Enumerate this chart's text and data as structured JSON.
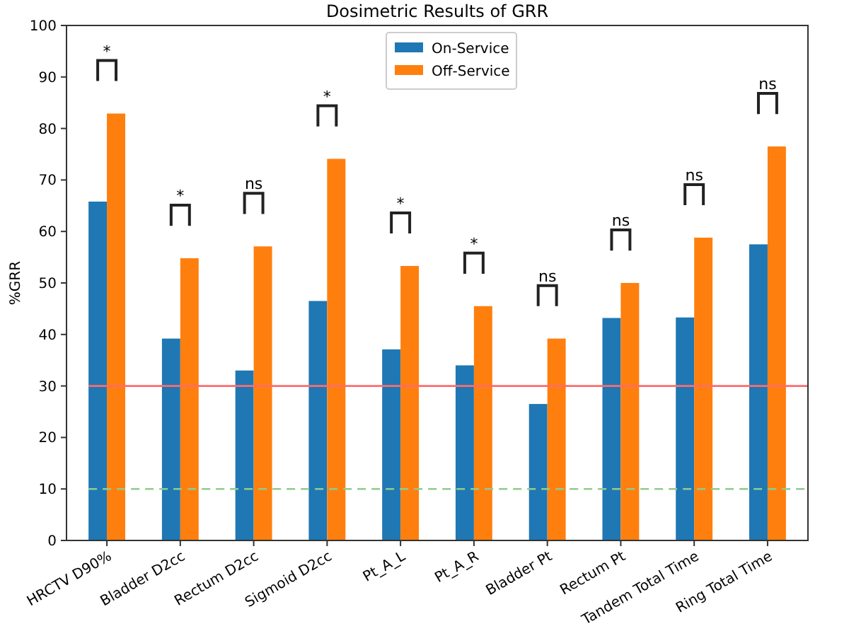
{
  "chart_data": {
    "type": "bar",
    "title": "Dosimetric Results of GRR",
    "ylabel": "%GRR",
    "categories": [
      "HRCTV D90%",
      "Bladder D2cc",
      "Rectum D2cc",
      "Sigmoid D2cc",
      "Pt_A_L",
      "Pt_A_R",
      "Bladder Pt",
      "Rectum Pt",
      "Tandem Total Time",
      "Ring Total Time"
    ],
    "series": [
      {
        "name": "On-Service",
        "color": "#1f77b4",
        "values": [
          65.8,
          39.2,
          33,
          46.5,
          37.1,
          34,
          26.5,
          43.2,
          43.3,
          57.5
        ]
      },
      {
        "name": "Off-Service",
        "color": "#ff7f0e",
        "values": [
          82.9,
          54.8,
          57.1,
          74.1,
          53.3,
          45.5,
          39.2,
          50,
          58.8,
          76.5
        ]
      }
    ],
    "ylim": [
      0,
      100
    ],
    "yticks": [
      0,
      10,
      20,
      30,
      40,
      50,
      60,
      70,
      80,
      90,
      100
    ],
    "grid": false,
    "legend": "top",
    "ref_lines": [
      {
        "axis": "y",
        "value": 30,
        "color": "#ff6b6b",
        "line_style": "solid"
      },
      {
        "axis": "y",
        "value": 10,
        "color": "#8fcc8f",
        "line_style": "dashed"
      }
    ],
    "annotations": [
      "*",
      "*",
      "ns",
      "*",
      "*",
      "*",
      "ns",
      "ns",
      "ns",
      "ns"
    ]
  }
}
